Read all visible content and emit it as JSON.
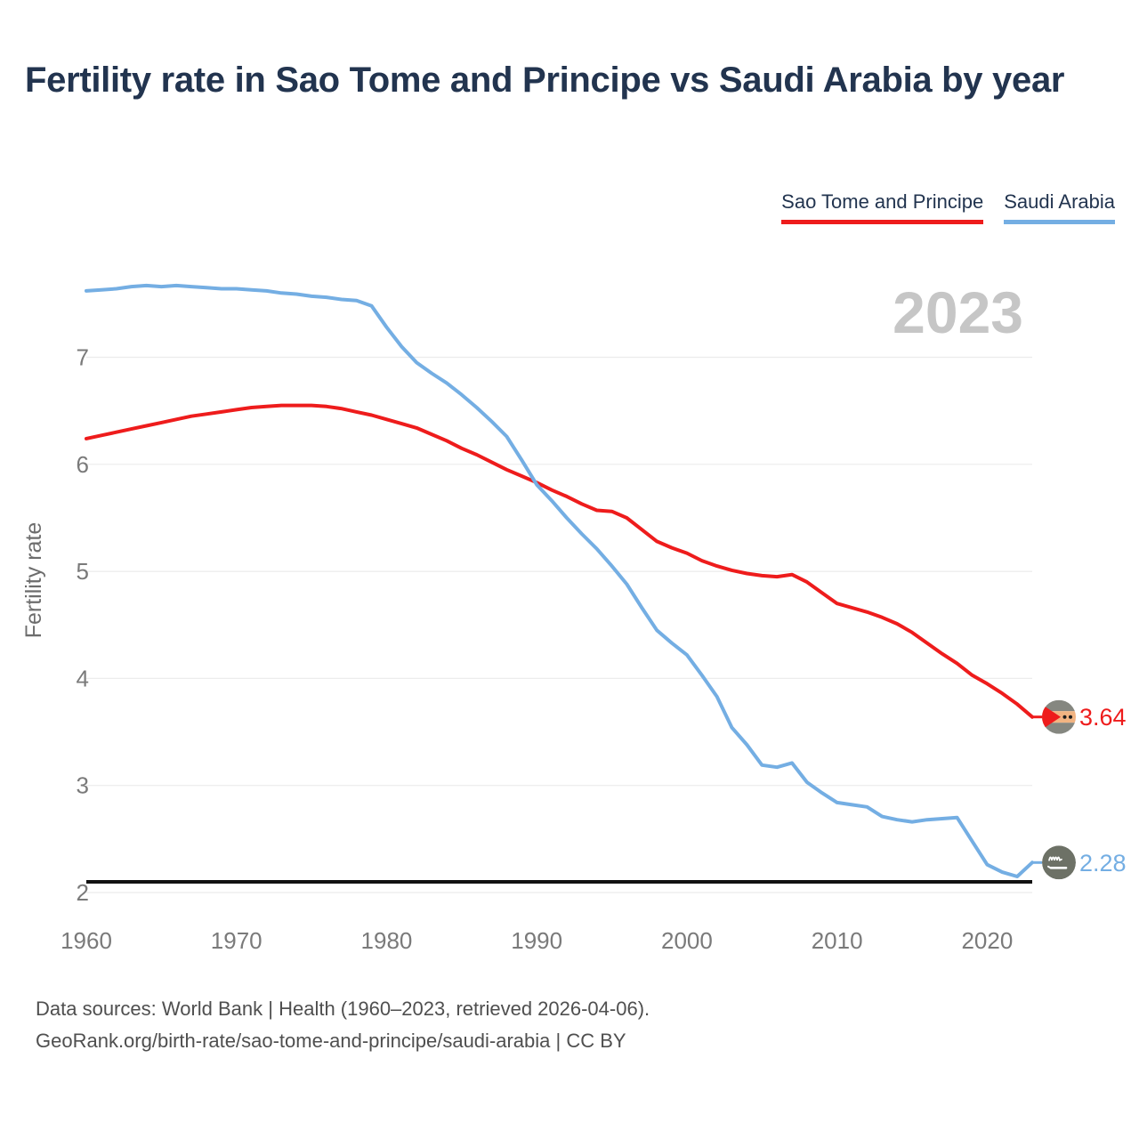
{
  "page": {
    "title": "Fertility rate in Sao Tome and Principe vs Saudi Arabia by year",
    "watermark_year": "2023"
  },
  "legend": [
    {
      "label": "Sao Tome and Principe",
      "color": "#ee1c1c"
    },
    {
      "label": "Saudi Arabia",
      "color": "#74aee3"
    }
  ],
  "chart_data": {
    "type": "line",
    "title": "Fertility rate in Sao Tome and Principe vs Saudi Arabia by year",
    "xlabel": "",
    "ylabel": "Fertility rate",
    "xlim": [
      1960,
      2023
    ],
    "ylim": [
      1.85,
      7.85
    ],
    "x_ticks": [
      1960,
      1970,
      1980,
      1990,
      2000,
      2010,
      2020
    ],
    "y_ticks": [
      7,
      6,
      5,
      4,
      3,
      2
    ],
    "grid": "horizontal",
    "legend_position": "top-right",
    "watermark": "2023",
    "reference_line": {
      "value": 2.1,
      "color": "#111111"
    },
    "x": [
      1960,
      1961,
      1962,
      1963,
      1964,
      1965,
      1966,
      1967,
      1968,
      1969,
      1970,
      1971,
      1972,
      1973,
      1974,
      1975,
      1976,
      1977,
      1978,
      1979,
      1980,
      1981,
      1982,
      1983,
      1984,
      1985,
      1986,
      1987,
      1988,
      1989,
      1990,
      1991,
      1992,
      1993,
      1994,
      1995,
      1996,
      1997,
      1998,
      1999,
      2000,
      2001,
      2002,
      2003,
      2004,
      2005,
      2006,
      2007,
      2008,
      2009,
      2010,
      2011,
      2012,
      2013,
      2014,
      2015,
      2016,
      2017,
      2018,
      2019,
      2020,
      2021,
      2022,
      2023
    ],
    "series": [
      {
        "name": "Sao Tome and Principe",
        "color": "#ee1c1c",
        "end_label": "3.64",
        "end_value": 3.64,
        "values": [
          6.24,
          6.27,
          6.3,
          6.33,
          6.36,
          6.39,
          6.42,
          6.45,
          6.47,
          6.49,
          6.51,
          6.53,
          6.54,
          6.55,
          6.55,
          6.55,
          6.54,
          6.52,
          6.49,
          6.46,
          6.42,
          6.38,
          6.34,
          6.28,
          6.22,
          6.15,
          6.09,
          6.02,
          5.95,
          5.89,
          5.83,
          5.76,
          5.7,
          5.63,
          5.57,
          5.56,
          5.5,
          5.39,
          5.28,
          5.22,
          5.17,
          5.1,
          5.05,
          5.01,
          4.98,
          4.96,
          4.95,
          4.97,
          4.9,
          4.8,
          4.7,
          4.66,
          4.62,
          4.57,
          4.51,
          4.43,
          4.33,
          4.23,
          4.14,
          4.03,
          3.95,
          3.86,
          3.76,
          3.64
        ]
      },
      {
        "name": "Saudi Arabia",
        "color": "#74aee3",
        "end_label": "2.28",
        "end_value": 2.28,
        "values": [
          7.62,
          7.63,
          7.64,
          7.66,
          7.67,
          7.66,
          7.67,
          7.66,
          7.65,
          7.64,
          7.64,
          7.63,
          7.62,
          7.6,
          7.59,
          7.57,
          7.56,
          7.54,
          7.53,
          7.48,
          7.28,
          7.1,
          6.95,
          6.85,
          6.76,
          6.65,
          6.53,
          6.4,
          6.26,
          6.04,
          5.81,
          5.66,
          5.5,
          5.35,
          5.21,
          5.05,
          4.88,
          4.66,
          4.45,
          4.33,
          4.22,
          4.03,
          3.83,
          3.54,
          3.38,
          3.19,
          3.17,
          3.21,
          3.03,
          2.93,
          2.84,
          2.82,
          2.8,
          2.71,
          2.68,
          2.66,
          2.68,
          2.69,
          2.7,
          2.48,
          2.26,
          2.19,
          2.15,
          2.28
        ]
      }
    ]
  },
  "footer": {
    "line1": "Data sources: World Bank | Health (1960–2023, retrieved 2026-04-06).",
    "line2": "GeoRank.org/birth-rate/sao-tome-and-principe/saudi-arabia | CC BY"
  }
}
